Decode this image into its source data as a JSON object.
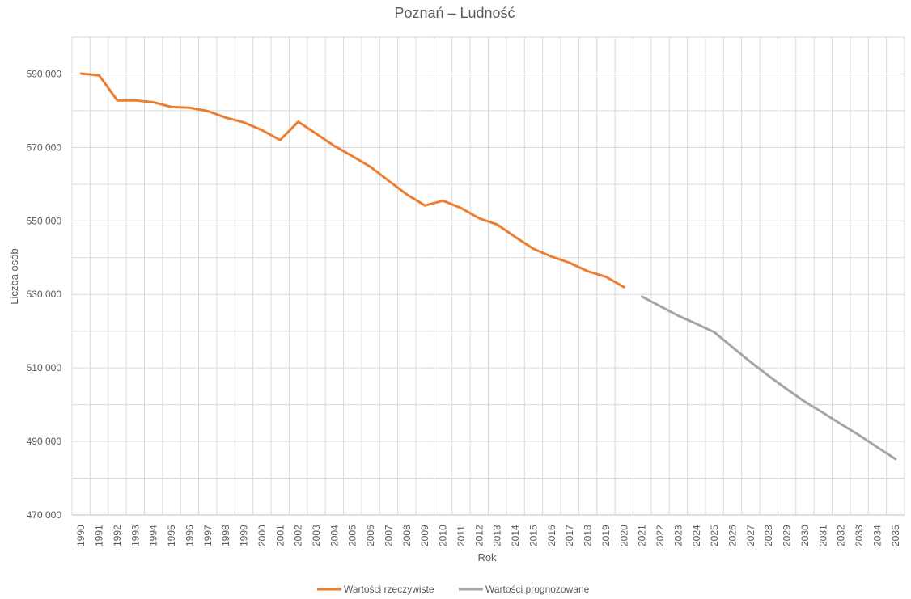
{
  "chart_data": {
    "type": "line",
    "title": "Poznań – Ludność",
    "xlabel": "Rok",
    "ylabel": "Liczba osób",
    "ylim": [
      470000,
      600000
    ],
    "y_ticks": [
      {
        "value": 470000,
        "label": "470 000"
      },
      {
        "value": 490000,
        "label": "490 000"
      },
      {
        "value": 510000,
        "label": "510 000"
      },
      {
        "value": 530000,
        "label": "530 000"
      },
      {
        "value": 550000,
        "label": "550 000"
      },
      {
        "value": 570000,
        "label": "570 000"
      },
      {
        "value": 590000,
        "label": "590 000"
      }
    ],
    "categories": [
      "1990",
      "1991",
      "1992",
      "1993",
      "1994",
      "1995",
      "1996",
      "1997",
      "1998",
      "1999",
      "2000",
      "2001",
      "2002",
      "2003",
      "2004",
      "2005",
      "2006",
      "2007",
      "2008",
      "2009",
      "2010",
      "2011",
      "2012",
      "2013",
      "2014",
      "2015",
      "2016",
      "2017",
      "2018",
      "2019",
      "2020",
      "2021",
      "2022",
      "2023",
      "2024",
      "2025",
      "2026",
      "2027",
      "2028",
      "2029",
      "2030",
      "2031",
      "2032",
      "2033",
      "2034",
      "2035"
    ],
    "grid": true,
    "legend_position": "bottom",
    "series": [
      {
        "name": "Wartości rzeczywiste",
        "color": "#ED7D31",
        "values": [
          590100,
          589600,
          582800,
          582800,
          582300,
          581000,
          580800,
          579900,
          578100,
          576800,
          574700,
          572000,
          577000,
          573700,
          570400,
          567600,
          564700,
          560900,
          557200,
          554200,
          555500,
          553500,
          550700,
          549000,
          545600,
          542400,
          540300,
          538600,
          536300,
          534800,
          532000,
          null,
          null,
          null,
          null,
          null,
          null,
          null,
          null,
          null,
          null,
          null,
          null,
          null,
          null,
          null
        ]
      },
      {
        "name": "Wartości prognozowane",
        "color": "#A5A5A5",
        "values": [
          null,
          null,
          null,
          null,
          null,
          null,
          null,
          null,
          null,
          null,
          null,
          null,
          null,
          null,
          null,
          null,
          null,
          null,
          null,
          null,
          null,
          null,
          null,
          null,
          null,
          null,
          null,
          null,
          null,
          null,
          null,
          529400,
          526800,
          524200,
          522000,
          519700,
          515600,
          511600,
          507800,
          504200,
          500800,
          497800,
          494700,
          491700,
          488400,
          485200
        ]
      }
    ]
  }
}
